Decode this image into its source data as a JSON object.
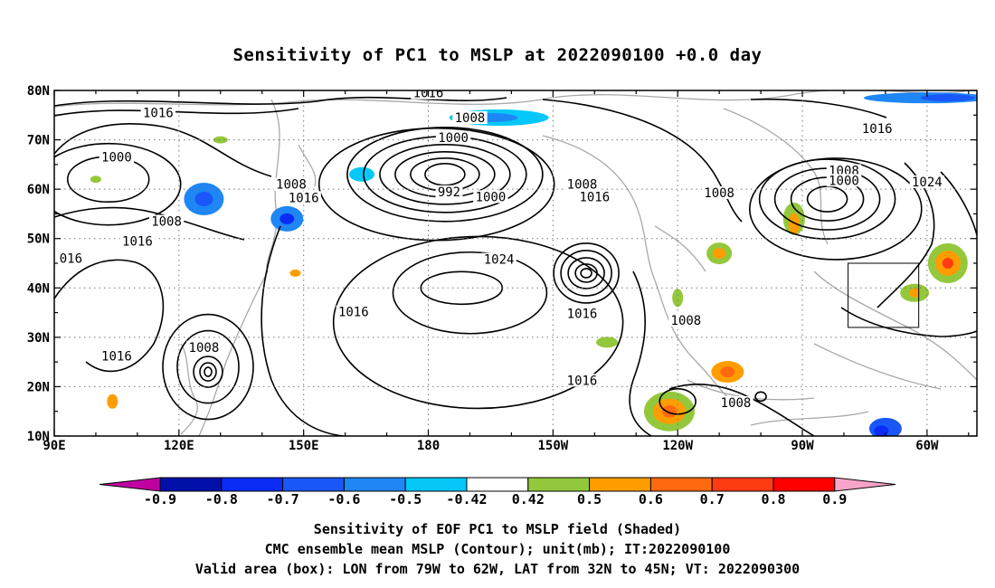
{
  "title": "Sensitivity of PC1 to MSLP at 2022090100 +0.0 day",
  "map": {
    "lat_labels": [
      "80N",
      "70N",
      "60N",
      "50N",
      "40N",
      "30N",
      "20N",
      "10N"
    ],
    "lon_labels": [
      "90E",
      "120E",
      "150E",
      "180",
      "150W",
      "120W",
      "90W",
      "60W"
    ],
    "contour_labels": [
      {
        "text": "1016",
        "lon": 180,
        "lat": 79.5
      },
      {
        "text": "1016",
        "lon": 115,
        "lat": 75.5
      },
      {
        "text": "1008",
        "lon": -170,
        "lat": 74.5
      },
      {
        "text": "1000",
        "lon": -174,
        "lat": 70.5
      },
      {
        "text": "1016",
        "lon": -72,
        "lat": 72.3
      },
      {
        "text": "1000",
        "lon": 105,
        "lat": 66.5
      },
      {
        "text": "1008",
        "lon": -80,
        "lat": 63.8
      },
      {
        "text": "1000",
        "lon": -80,
        "lat": 61.8
      },
      {
        "text": "1024",
        "lon": -60,
        "lat": 61.5
      },
      {
        "text": "992",
        "lon": -175,
        "lat": 59.5
      },
      {
        "text": "1000",
        "lon": -165,
        "lat": 58.5
      },
      {
        "text": "1008",
        "lon": -143,
        "lat": 61
      },
      {
        "text": "1008",
        "lon": 147,
        "lat": 61
      },
      {
        "text": "1016",
        "lon": -140,
        "lat": 58.5
      },
      {
        "text": "1008",
        "lon": -110,
        "lat": 59.3
      },
      {
        "text": "1016",
        "lon": 150,
        "lat": 58.3
      },
      {
        "text": "1008",
        "lon": 117,
        "lat": 53.5
      },
      {
        "text": "1016",
        "lon": 110,
        "lat": 49.5
      },
      {
        "text": "016",
        "lon": 94,
        "lat": 46
      },
      {
        "text": "1024",
        "lon": -163,
        "lat": 45.8
      },
      {
        "text": "1016",
        "lon": 162,
        "lat": 35.2
      },
      {
        "text": "1016",
        "lon": -143,
        "lat": 34.8
      },
      {
        "text": "1008",
        "lon": -118,
        "lat": 33.5
      },
      {
        "text": "1008",
        "lon": 126,
        "lat": 28
      },
      {
        "text": "1016",
        "lon": 105,
        "lat": 26.2
      },
      {
        "text": "1016",
        "lon": -143,
        "lat": 21.3
      },
      {
        "text": "1008",
        "lon": -106,
        "lat": 16.8
      }
    ],
    "highlight_box": {
      "lon_from": -79,
      "lon_to": -62,
      "lat_from": 32,
      "lat_to": 45
    }
  },
  "colorbar": {
    "labels": [
      "-0.9",
      "-0.8",
      "-0.7",
      "-0.6",
      "-0.5",
      "-0.42",
      "0.42",
      "0.5",
      "0.6",
      "0.7",
      "0.8",
      "0.9"
    ],
    "colors": [
      "#0010a8",
      "#0a2cf5",
      "#1a57f8",
      "#1e86f5",
      "#05c8f8",
      "#ffffff",
      "#94c83c",
      "#ff9d00",
      "#ff6a10",
      "#ff3b14",
      "#ff0000"
    ],
    "low_end_color": "#c000a0",
    "high_end_color": "#f7a4c8"
  },
  "captions": {
    "line1": "Sensitivity of EOF PC1 to MSLP field (Shaded)",
    "line2": "CMC ensemble mean MSLP (Contour); unit(mb); IT:2022090100",
    "line3": "Valid area (box): LON from 79W to 62W, LAT from 32N to 45N; VT: 2022090300"
  }
}
